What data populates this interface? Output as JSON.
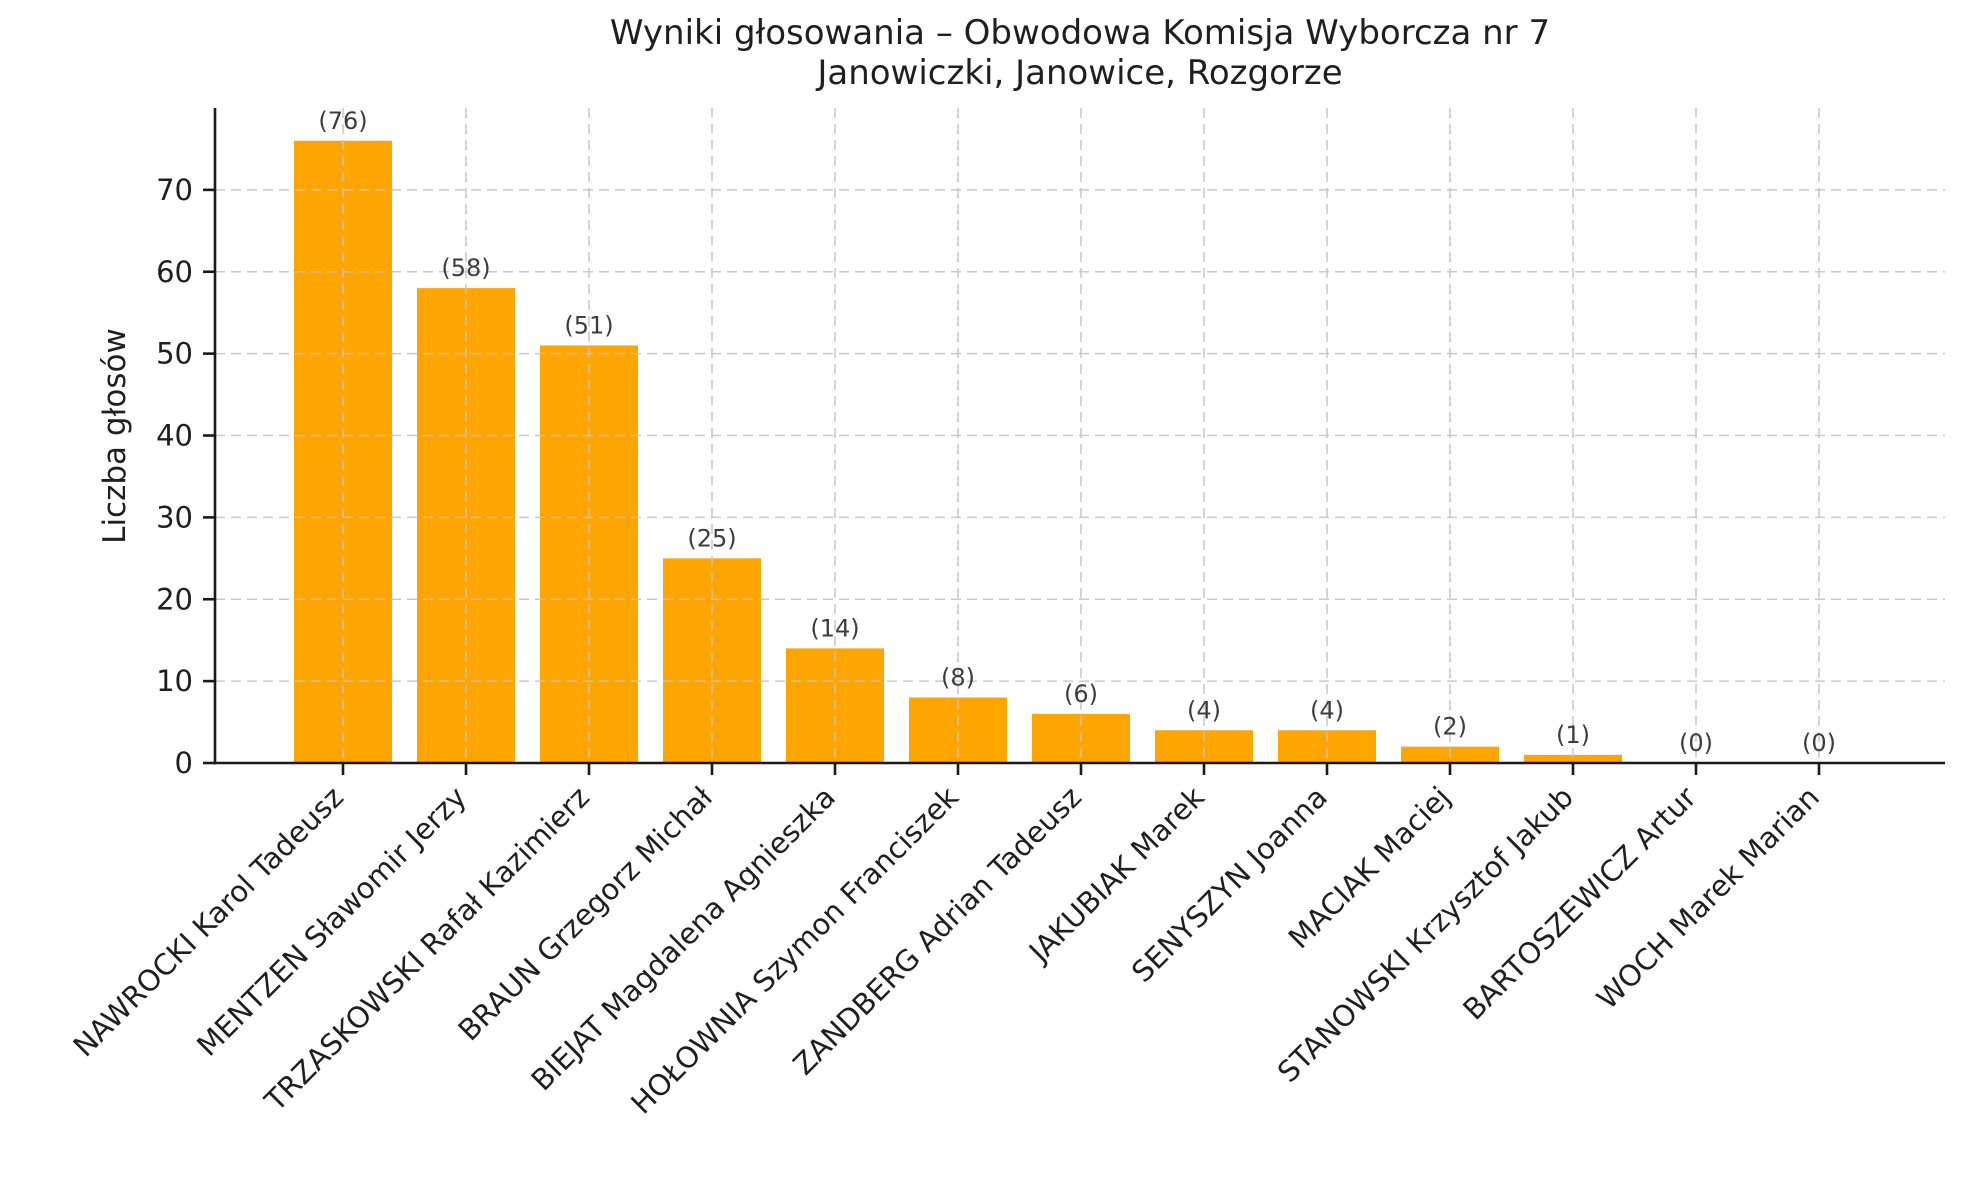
{
  "chart_data": {
    "type": "bar",
    "title_line1": "Wyniki głosowania – Obwodowa Komisja Wyborcza nr 7",
    "title_line2": "Janowiczki, Janowice, Rozgorze",
    "ylabel": "Liczba głosów",
    "xlabel": "",
    "categories": [
      "NAWROCKI Karol Tadeusz",
      "MENTZEN Sławomir Jerzy",
      "TRZASKOWSKI Rafał Kazimierz",
      "BRAUN Grzegorz Michał",
      "BIEJAT Magdalena Agnieszka",
      "HOŁOWNIA Szymon Franciszek",
      "ZANDBERG Adrian Tadeusz",
      "JAKUBIAK Marek",
      "SENYSZYN Joanna",
      "MACIAK Maciej",
      "STANOWSKI Krzysztof Jakub",
      "BARTOSZEWICZ Artur",
      "WOCH Marek Marian"
    ],
    "values": [
      76,
      58,
      51,
      25,
      14,
      8,
      6,
      4,
      4,
      2,
      1,
      0,
      0
    ],
    "bar_value_annotations": [
      "(76)",
      "(58)",
      "(51)",
      "(25)",
      "(14)",
      "(8)",
      "(6)",
      "(4)",
      "(4)",
      "(2)",
      "(1)",
      "(0)",
      "(0)"
    ],
    "ylim": [
      0,
      80
    ],
    "yticks": [
      0,
      10,
      20,
      30,
      40,
      50,
      60,
      70
    ],
    "x_tick_rotation_deg": 45,
    "grid": {
      "visible": true,
      "style": "dashed",
      "axes": "both",
      "drawn_above_bars": true
    },
    "legend": "none",
    "colors": {
      "bar": "#FFA500",
      "grid": "#c4c4c4",
      "spine": "#1a1a1a",
      "tick_text": "#1f1f1f",
      "value_label_text": "#3d3d3d",
      "background": "#ffffff"
    }
  }
}
